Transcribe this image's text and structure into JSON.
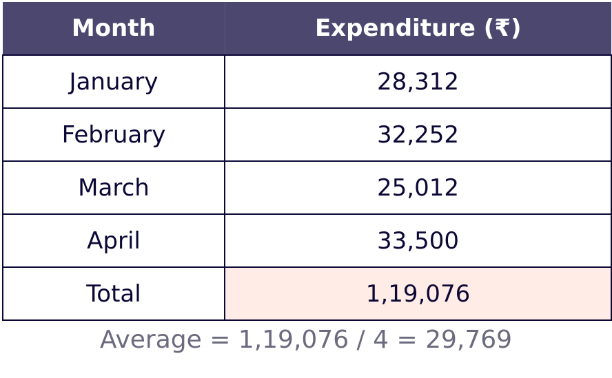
{
  "table": {
    "headers": [
      "Month",
      "Expenditure (₹)"
    ],
    "rows": [
      [
        "January",
        "28,312"
      ],
      [
        "February",
        "32,252"
      ],
      [
        "March",
        "25,012"
      ],
      [
        "April",
        "33,500"
      ],
      [
        "Total",
        "1,19,076"
      ]
    ]
  },
  "footnote": "Average = 1,19,076 / 4 = 29,769",
  "colors": {
    "header_bg": "#4b476e",
    "header_text": "#ffffff",
    "cell_text": "#0c0836",
    "border": "#0c0836",
    "total_highlight": "#ffece6",
    "footnote_text": "#6b6a7e"
  }
}
